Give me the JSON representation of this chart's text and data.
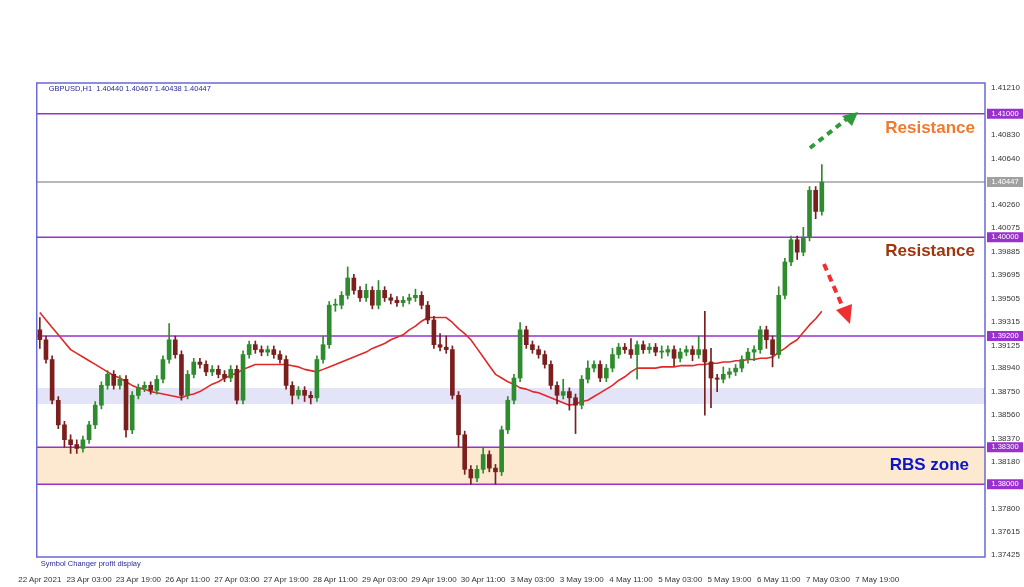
{
  "chart_data": {
    "type": "candlestick",
    "title": "GBPUSD,H1  1.40440 1.40467 1.40438 1.40447",
    "marker": "none",
    "grid": false,
    "legend": false,
    "categories": [
      "22 Apr 2021",
      null,
      null,
      null,
      null,
      null,
      null,
      null,
      "23 Apr 03:00",
      null,
      null,
      null,
      null,
      null,
      null,
      null,
      "23 Apr 19:00",
      null,
      null,
      null,
      null,
      null,
      null,
      null,
      "26 Apr 11:00",
      null,
      null,
      null,
      null,
      null,
      null,
      null,
      "27 Apr 03:00",
      null,
      null,
      null,
      null,
      null,
      null,
      null,
      "27 Apr 19:00",
      null,
      null,
      null,
      null,
      null,
      null,
      null,
      "28 Apr 11:00",
      null,
      null,
      null,
      null,
      null,
      null,
      null,
      "29 Apr 03:00",
      null,
      null,
      null,
      null,
      null,
      null,
      null,
      "29 Apr 19:00",
      null,
      null,
      null,
      null,
      null,
      null,
      null,
      "30 Apr 11:00",
      null,
      null,
      null,
      null,
      null,
      null,
      null,
      "3 May 03:00",
      null,
      null,
      null,
      null,
      null,
      null,
      null,
      "3 May 19:00",
      null,
      null,
      null,
      null,
      null,
      null,
      null,
      "4 May 11:00",
      null,
      null,
      null,
      null,
      null,
      null,
      null,
      "5 May 03:00",
      null,
      null,
      null,
      null,
      null,
      null,
      null,
      "5 May 19:00",
      null,
      null,
      null,
      null,
      null,
      null,
      null,
      "6 May 11:00",
      null,
      null,
      null,
      null,
      null,
      null,
      null,
      "7 May 03:00",
      null,
      null,
      null,
      null,
      null,
      null,
      null,
      "7 May 19:00",
      null,
      null,
      null,
      null,
      null,
      null,
      null,
      null,
      null,
      null,
      null,
      null,
      null,
      null,
      null,
      null,
      null
    ],
    "ohlc": [
      [
        1.3925,
        1.3935,
        1.391,
        1.3917
      ],
      [
        1.3917,
        1.392,
        1.3898,
        1.3901
      ],
      [
        1.3901,
        1.3904,
        1.3865,
        1.3868
      ],
      [
        1.3868,
        1.3871,
        1.3845,
        1.3848
      ],
      [
        1.3848,
        1.3851,
        1.383,
        1.3836
      ],
      [
        1.3836,
        1.384,
        1.3825,
        1.3832
      ],
      [
        1.3832,
        1.3836,
        1.3825,
        1.3829
      ],
      [
        1.3829,
        1.3839,
        1.3826,
        1.3836
      ],
      [
        1.3836,
        1.3851,
        1.3833,
        1.3848
      ],
      [
        1.3848,
        1.3867,
        1.3845,
        1.3864
      ],
      [
        1.3864,
        1.3883,
        1.3861,
        1.388
      ],
      [
        1.388,
        1.3892,
        1.3877,
        1.3889
      ],
      [
        1.3889,
        1.3892,
        1.3877,
        1.388
      ],
      [
        1.388,
        1.3888,
        1.3877,
        1.3885
      ],
      [
        1.3885,
        1.3888,
        1.3838,
        1.3844
      ],
      [
        1.3844,
        1.3875,
        1.3841,
        1.3872
      ],
      [
        1.3872,
        1.3881,
        1.3869,
        1.3878
      ],
      [
        1.3878,
        1.3883,
        1.3875,
        1.388
      ],
      [
        1.388,
        1.3883,
        1.3873,
        1.3876
      ],
      [
        1.3876,
        1.3888,
        1.3873,
        1.3885
      ],
      [
        1.3885,
        1.3904,
        1.3882,
        1.3901
      ],
      [
        1.3901,
        1.393,
        1.3898,
        1.3917
      ],
      [
        1.3917,
        1.392,
        1.3902,
        1.3905
      ],
      [
        1.3905,
        1.3908,
        1.3868,
        1.3872
      ],
      [
        1.3872,
        1.3892,
        1.3869,
        1.3889
      ],
      [
        1.3889,
        1.3902,
        1.3886,
        1.3899
      ],
      [
        1.3899,
        1.3902,
        1.3894,
        1.3897
      ],
      [
        1.3897,
        1.39,
        1.3888,
        1.3891
      ],
      [
        1.3891,
        1.3896,
        1.3888,
        1.3893
      ],
      [
        1.3893,
        1.3896,
        1.3886,
        1.3889
      ],
      [
        1.3889,
        1.3892,
        1.3883,
        1.3886
      ],
      [
        1.3886,
        1.3896,
        1.3883,
        1.3893
      ],
      [
        1.3893,
        1.3896,
        1.3865,
        1.3868
      ],
      [
        1.3868,
        1.3908,
        1.3865,
        1.3905
      ],
      [
        1.3905,
        1.3916,
        1.3902,
        1.3913
      ],
      [
        1.3913,
        1.3916,
        1.3906,
        1.3909
      ],
      [
        1.3909,
        1.3912,
        1.3904,
        1.3907
      ],
      [
        1.3907,
        1.3912,
        1.3904,
        1.3909
      ],
      [
        1.3909,
        1.3912,
        1.3902,
        1.3905
      ],
      [
        1.3905,
        1.3908,
        1.3898,
        1.3901
      ],
      [
        1.3901,
        1.3904,
        1.3877,
        1.388
      ],
      [
        1.388,
        1.3883,
        1.3865,
        1.3872
      ],
      [
        1.3872,
        1.3879,
        1.3869,
        1.3876
      ],
      [
        1.3876,
        1.3879,
        1.3867,
        1.3872
      ],
      [
        1.3872,
        1.3875,
        1.3865,
        1.387
      ],
      [
        1.387,
        1.3904,
        1.3867,
        1.3901
      ],
      [
        1.3901,
        1.392,
        1.3898,
        1.3913
      ],
      [
        1.3913,
        1.3948,
        1.391,
        1.3945
      ],
      [
        1.3945,
        1.395,
        1.394,
        1.3945
      ],
      [
        1.3945,
        1.3956,
        1.3942,
        1.3953
      ],
      [
        1.3953,
        1.3976,
        1.395,
        1.3967
      ],
      [
        1.3967,
        1.397,
        1.3954,
        1.3957
      ],
      [
        1.3957,
        1.396,
        1.3948,
        1.3951
      ],
      [
        1.3951,
        1.3962,
        1.3948,
        1.3957
      ],
      [
        1.3957,
        1.396,
        1.3942,
        1.3945
      ],
      [
        1.3945,
        1.3965,
        1.3942,
        1.3957
      ],
      [
        1.3957,
        1.396,
        1.3948,
        1.3951
      ],
      [
        1.3951,
        1.3954,
        1.3946,
        1.3949
      ],
      [
        1.3949,
        1.3952,
        1.3944,
        1.3947
      ],
      [
        1.3947,
        1.3952,
        1.3944,
        1.3949
      ],
      [
        1.3949,
        1.3954,
        1.3946,
        1.3951
      ],
      [
        1.3951,
        1.3958,
        1.3948,
        1.3953
      ],
      [
        1.3953,
        1.3956,
        1.3942,
        1.3945
      ],
      [
        1.3945,
        1.3948,
        1.393,
        1.3933
      ],
      [
        1.3933,
        1.3936,
        1.391,
        1.3913
      ],
      [
        1.3913,
        1.3922,
        1.3908,
        1.3911
      ],
      [
        1.3911,
        1.392,
        1.3906,
        1.3909
      ],
      [
        1.3909,
        1.3912,
        1.3869,
        1.3872
      ],
      [
        1.3872,
        1.3875,
        1.383,
        1.384
      ],
      [
        1.384,
        1.3843,
        1.3808,
        1.3812
      ],
      [
        1.3812,
        1.3815,
        1.38,
        1.3805
      ],
      [
        1.3805,
        1.3815,
        1.3802,
        1.3812
      ],
      [
        1.3812,
        1.383,
        1.3809,
        1.3824
      ],
      [
        1.3824,
        1.3827,
        1.381,
        1.3813
      ],
      [
        1.3813,
        1.3816,
        1.38,
        1.381
      ],
      [
        1.381,
        1.3847,
        1.3807,
        1.3844
      ],
      [
        1.3844,
        1.3871,
        1.3841,
        1.3868
      ],
      [
        1.3868,
        1.3889,
        1.3865,
        1.3886
      ],
      [
        1.3886,
        1.3931,
        1.3883,
        1.3925
      ],
      [
        1.3925,
        1.3928,
        1.391,
        1.3913
      ],
      [
        1.3913,
        1.3916,
        1.3906,
        1.3909
      ],
      [
        1.3909,
        1.3912,
        1.3902,
        1.3905
      ],
      [
        1.3905,
        1.3908,
        1.3894,
        1.3897
      ],
      [
        1.3897,
        1.39,
        1.3877,
        1.388
      ],
      [
        1.388,
        1.3883,
        1.3865,
        1.3872
      ],
      [
        1.3872,
        1.3885,
        1.3869,
        1.3875
      ],
      [
        1.3875,
        1.3878,
        1.386,
        1.387
      ],
      [
        1.387,
        1.3873,
        1.3841,
        1.3864
      ],
      [
        1.3864,
        1.3888,
        1.3861,
        1.3885
      ],
      [
        1.3885,
        1.39,
        1.3882,
        1.3894
      ],
      [
        1.3894,
        1.39,
        1.3891,
        1.3897
      ],
      [
        1.3897,
        1.39,
        1.3883,
        1.3886
      ],
      [
        1.3886,
        1.3897,
        1.3883,
        1.3894
      ],
      [
        1.3894,
        1.391,
        1.3891,
        1.3905
      ],
      [
        1.3905,
        1.3914,
        1.3902,
        1.3911
      ],
      [
        1.3911,
        1.3914,
        1.3906,
        1.3909
      ],
      [
        1.3909,
        1.3918,
        1.3902,
        1.3905
      ],
      [
        1.3905,
        1.3916,
        1.3885,
        1.3913
      ],
      [
        1.3913,
        1.3916,
        1.3906,
        1.3909
      ],
      [
        1.3909,
        1.3914,
        1.3906,
        1.3911
      ],
      [
        1.3911,
        1.3914,
        1.3904,
        1.3907
      ],
      [
        1.3907,
        1.3912,
        1.3902,
        1.3907
      ],
      [
        1.3907,
        1.3912,
        1.3904,
        1.3909
      ],
      [
        1.3909,
        1.3912,
        1.3896,
        1.3902
      ],
      [
        1.3902,
        1.391,
        1.3899,
        1.3907
      ],
      [
        1.3907,
        1.3912,
        1.3904,
        1.3909
      ],
      [
        1.3909,
        1.3912,
        1.39,
        1.3905
      ],
      [
        1.3905,
        1.392,
        1.3902,
        1.3909
      ],
      [
        1.3909,
        1.394,
        1.3856,
        1.3899
      ],
      [
        1.3899,
        1.391,
        1.3862,
        1.3886
      ],
      [
        1.3886,
        1.3889,
        1.3875,
        1.3885
      ],
      [
        1.3885,
        1.3895,
        1.3882,
        1.3889
      ],
      [
        1.3889,
        1.3894,
        1.3886,
        1.3891
      ],
      [
        1.3891,
        1.3897,
        1.3888,
        1.3894
      ],
      [
        1.3894,
        1.3904,
        1.3891,
        1.3901
      ],
      [
        1.3901,
        1.391,
        1.3898,
        1.3907
      ],
      [
        1.3907,
        1.3912,
        1.39,
        1.3909
      ],
      [
        1.3909,
        1.3928,
        1.3906,
        1.3925
      ],
      [
        1.3925,
        1.3928,
        1.391,
        1.3917
      ],
      [
        1.3917,
        1.392,
        1.3895,
        1.3905
      ],
      [
        1.3905,
        1.396,
        1.3902,
        1.3953
      ],
      [
        1.3953,
        1.3983,
        1.395,
        1.398
      ],
      [
        1.398,
        1.4001,
        1.3977,
        1.3998
      ],
      [
        1.3998,
        1.4001,
        1.3982,
        1.3988
      ],
      [
        1.3988,
        1.4008,
        1.3985,
        1.4
      ],
      [
        1.4,
        1.4041,
        1.3997,
        1.4038
      ],
      [
        1.4038,
        1.4041,
        1.4015,
        1.4021
      ],
      [
        1.4021,
        1.4059,
        1.4018,
        1.40447
      ],
      null,
      null,
      null,
      null,
      null,
      null,
      null,
      null,
      null,
      null,
      null,
      null,
      null,
      null,
      null,
      null,
      null,
      null,
      null,
      null,
      null,
      null,
      null,
      null,
      null,
      null
    ],
    "colors": [
      "#7a1e1e",
      "#7a1e1e",
      "#7a1e1e",
      "#7a1e1e",
      "#7a1e1e",
      "#7a1e1e",
      "#7a1e1e",
      "#2e8b2e",
      "#2e8b2e",
      "#2e8b2e",
      "#2e8b2e",
      "#2e8b2e",
      "#7a1e1e",
      "#2e8b2e",
      "#7a1e1e",
      "#2e8b2e",
      "#2e8b2e",
      "#2e8b2e",
      "#7a1e1e",
      "#2e8b2e",
      "#2e8b2e",
      "#2e8b2e",
      "#7a1e1e",
      "#7a1e1e",
      "#2e8b2e",
      "#2e8b2e",
      "#7a1e1e",
      "#7a1e1e",
      "#2e8b2e",
      "#7a1e1e",
      "#7a1e1e",
      "#2e8b2e",
      "#7a1e1e",
      "#2e8b2e",
      "#2e8b2e",
      "#7a1e1e",
      "#7a1e1e",
      "#2e8b2e",
      "#7a1e1e",
      "#7a1e1e",
      "#7a1e1e",
      "#7a1e1e",
      "#2e8b2e",
      "#7a1e1e",
      "#7a1e1e",
      "#2e8b2e",
      "#2e8b2e",
      "#2e8b2e",
      "#2e8b2e",
      "#2e8b2e",
      "#2e8b2e",
      "#7a1e1e",
      "#7a1e1e",
      "#2e8b2e",
      "#7a1e1e",
      "#2e8b2e",
      "#7a1e1e",
      "#7a1e1e",
      "#7a1e1e",
      "#2e8b2e",
      "#2e8b2e",
      "#2e8b2e",
      "#7a1e1e",
      "#7a1e1e",
      "#7a1e1e",
      "#7a1e1e",
      "#7a1e1e",
      "#7a1e1e",
      "#7a1e1e",
      "#7a1e1e",
      "#7a1e1e",
      "#2e8b2e",
      "#2e8b2e",
      "#7a1e1e",
      "#7a1e1e",
      "#2e8b2e",
      "#2e8b2e",
      "#2e8b2e",
      "#2e8b2e",
      "#7a1e1e",
      "#7a1e1e",
      "#7a1e1e",
      "#7a1e1e",
      "#7a1e1e",
      "#7a1e1e",
      "#2e8b2e",
      "#7a1e1e",
      "#7a1e1e",
      "#2e8b2e",
      "#2e8b2e",
      "#2e8b2e",
      "#7a1e1e",
      "#2e8b2e",
      "#2e8b2e",
      "#2e8b2e",
      "#7a1e1e",
      "#7a1e1e",
      "#2e8b2e",
      "#7a1e1e",
      "#2e8b2e",
      "#7a1e1e",
      "#2e8b2e",
      "#2e8b2e",
      "#7a1e1e",
      "#2e8b2e",
      "#2e8b2e",
      "#7a1e1e",
      "#2e8b2e",
      "#7a1e1e",
      "#7a1e1e",
      "#7a1e1e",
      "#2e8b2e",
      "#2e8b2e",
      "#2e8b2e",
      "#2e8b2e",
      "#2e8b2e",
      "#2e8b2e",
      "#2e8b2e",
      "#7a1e1e",
      "#7a1e1e",
      "#2e8b2e",
      "#2e8b2e",
      "#2e8b2e",
      "#7a1e1e",
      "#2e8b2e",
      "#2e8b2e",
      "#7a1e1e",
      "#2e8b2e",
      null,
      null,
      null,
      null,
      null,
      null,
      null,
      null,
      null,
      null,
      null,
      null,
      null,
      null,
      null,
      null,
      null,
      null,
      null,
      null,
      null,
      null,
      null,
      null,
      null,
      null
    ],
    "series": [
      {
        "type": "line",
        "color": "#e02828",
        "values": [
          1.3939,
          1.3933,
          1.3927,
          1.3921,
          1.3915,
          1.3909,
          1.3906,
          1.3903,
          1.39,
          1.3897,
          1.3894,
          1.3891,
          1.3888,
          1.3886,
          1.3883,
          1.388,
          1.3878,
          1.3877,
          1.3875,
          1.3874,
          1.3873,
          1.3872,
          1.3871,
          1.387,
          1.3872,
          1.3873,
          1.3875,
          1.3878,
          1.3881,
          1.3883,
          1.3886,
          1.3888,
          1.389,
          1.3893,
          1.3895,
          1.3897,
          1.3897,
          1.3897,
          1.3897,
          1.3897,
          1.3897,
          1.3896,
          1.3895,
          1.3893,
          1.3892,
          1.3891,
          1.3893,
          1.3895,
          1.3897,
          1.3899,
          1.3901,
          1.3903,
          1.3905,
          1.3907,
          1.391,
          1.3912,
          1.3914,
          1.3917,
          1.3919,
          1.3921,
          1.3925,
          1.3928,
          1.3932,
          1.3935,
          1.3935,
          1.3935,
          1.3935,
          1.3931,
          1.3926,
          1.3922,
          1.3917,
          1.391,
          1.3903,
          1.3896,
          1.3889,
          1.3886,
          1.3883,
          1.3881,
          1.3878,
          1.3877,
          1.3875,
          1.3874,
          1.3872,
          1.387,
          1.3868,
          1.3866,
          1.3864,
          1.3865,
          1.3867,
          1.3868,
          1.3871,
          1.3874,
          1.3877,
          1.388,
          1.3884,
          1.3887,
          1.3891,
          1.3894,
          1.3894,
          1.3894,
          1.3894,
          1.3895,
          1.3895,
          1.3895,
          1.3896,
          1.3896,
          1.3896,
          1.3897,
          1.3897,
          1.3898,
          1.3898,
          1.3899,
          1.3899,
          1.39,
          1.39,
          1.3901,
          1.3901,
          1.3902,
          1.3902,
          1.3903,
          1.3907,
          1.391,
          1.3914,
          1.3917,
          1.3923,
          1.3929,
          1.3934,
          1.394,
          null,
          null,
          null,
          null,
          null,
          null,
          null,
          null,
          null,
          null,
          null,
          null,
          null,
          null,
          null,
          null,
          null,
          null,
          null,
          null,
          null,
          null,
          null,
          null,
          null,
          null
        ]
      }
    ],
    "ylim": [
      1.3741,
      1.4125
    ],
    "yticks": [
      {
        "value": 1.4121,
        "label": "1.41210"
      },
      {
        "value": 1.41,
        "label": "1.41000"
      },
      {
        "value": 1.40447,
        "label": "1.40447"
      },
      {
        "value": 1.4,
        "label": "1.40000"
      },
      {
        "value": 1.392,
        "label": "1.39200"
      },
      {
        "value": 1.383,
        "label": "1.38300"
      },
      {
        "value": 1.38,
        "label": "1.38000"
      },
      {
        "value": 1.4083,
        "label": "1.40830"
      },
      {
        "value": 1.4064,
        "label": "1.40640"
      },
      {
        "value": 1.4026,
        "label": "1.40260"
      },
      {
        "value": 1.40075,
        "label": "1.40075"
      },
      {
        "value": 1.39885,
        "label": "1.39885"
      },
      {
        "value": 1.39695,
        "label": "1.39695"
      },
      {
        "value": 1.39505,
        "label": "1.39505"
      },
      {
        "value": 1.39315,
        "label": "1.39315"
      },
      {
        "value": 1.39125,
        "label": "1.39125"
      },
      {
        "value": 1.3894,
        "label": "1.38940"
      },
      {
        "value": 1.3875,
        "label": "1.38750"
      },
      {
        "value": 1.3856,
        "label": "1.38560"
      },
      {
        "value": 1.3837,
        "label": "1.38370"
      },
      {
        "value": 1.3818,
        "label": "1.38180"
      },
      {
        "value": 1.378,
        "label": "1.37800"
      },
      {
        "value": 1.37615,
        "label": "1.37615"
      },
      {
        "value": 1.37425,
        "label": "1.37425"
      }
    ],
    "ref_lines": [
      {
        "axis": "y",
        "value": 1.41,
        "label": "Resistance",
        "color": "#9932cc"
      },
      {
        "axis": "y",
        "value": 1.40447,
        "color": "#a0a0a0"
      },
      {
        "axis": "y",
        "value": 1.4,
        "label": "Resistance",
        "color": "#9932cc"
      },
      {
        "axis": "y",
        "value": 1.392,
        "color": "#9932cc"
      },
      {
        "axis": "y",
        "value": 1.383,
        "color": "#9932cc"
      },
      {
        "axis": "y",
        "value": 1.38,
        "color": "#9932cc"
      }
    ],
    "bands": [
      {
        "axis": "y",
        "from": 1.3865,
        "to": 1.3878,
        "color": "#e3e4f8"
      },
      {
        "axis": "y",
        "from": 1.38,
        "to": 1.383,
        "color": "#fde9cf",
        "label": "RBS zone"
      }
    ],
    "annotations": [
      "Symbol Changer profit display"
    ]
  }
}
